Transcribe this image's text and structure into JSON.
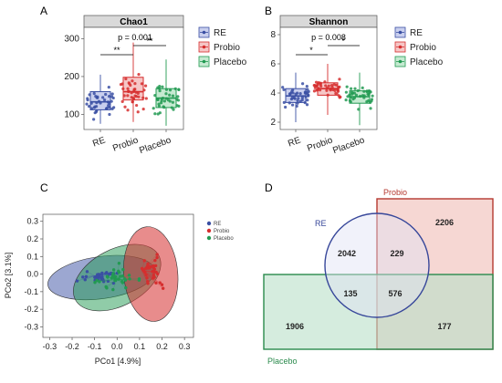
{
  "panels": {
    "a": "A",
    "b": "B",
    "c": "C",
    "d": "D"
  },
  "colors": {
    "re": "#3a4fa3",
    "probio": "#d62e2e",
    "placebo": "#229a52",
    "re_fill": "#c9cfee",
    "probio_fill": "#f6c6c6",
    "placebo_fill": "#c5ead1"
  },
  "chart_data": [
    {
      "type": "box",
      "panel": "A",
      "title": "Chao1",
      "categories": [
        "RE",
        "Probio",
        "Placebo"
      ],
      "yticks": [
        100,
        200,
        300
      ],
      "ylim": [
        60,
        330
      ],
      "stats": [
        {
          "name": "RE",
          "q1": 112,
          "median": 133,
          "q3": 160,
          "whisker_low": 75,
          "whisker_high": 205
        },
        {
          "name": "Probio",
          "q1": 138,
          "median": 160,
          "q3": 198,
          "whisker_low": 80,
          "whisker_high": 290
        },
        {
          "name": "Placebo",
          "q1": 118,
          "median": 143,
          "q3": 168,
          "whisker_low": 70,
          "whisker_high": 245
        }
      ],
      "annotations": {
        "p_value": "p = 0.001",
        "sig_left": "**",
        "sig_right": "**"
      },
      "legend": [
        "RE",
        "Probio",
        "Placebo"
      ]
    },
    {
      "type": "box",
      "panel": "B",
      "title": "Shannon",
      "categories": [
        "RE",
        "Probio",
        "Placebo"
      ],
      "yticks": [
        2,
        4,
        6,
        8
      ],
      "ylim": [
        1.5,
        8.5
      ],
      "stats": [
        {
          "name": "RE",
          "q1": 3.35,
          "median": 3.8,
          "q3": 4.3,
          "whisker_low": 2.0,
          "whisker_high": 5.4
        },
        {
          "name": "Probio",
          "q1": 3.85,
          "median": 4.3,
          "q3": 4.7,
          "whisker_low": 2.5,
          "whisker_high": 6.0
        },
        {
          "name": "Placebo",
          "q1": 3.3,
          "median": 3.75,
          "q3": 4.15,
          "whisker_low": 1.8,
          "whisker_high": 5.4
        }
      ],
      "annotations": {
        "p_value": "p = 0.008",
        "sig_left": "*",
        "sig_right": "*"
      },
      "legend": [
        "RE",
        "Probio",
        "Placebo"
      ]
    },
    {
      "type": "scatter",
      "panel": "C",
      "xlabel": "PCo1 [4.9%]",
      "ylabel": "PCo2 [3.1%]",
      "xticks": [
        -0.3,
        -0.2,
        -0.1,
        0.0,
        0.1,
        0.2,
        0.3
      ],
      "yticks": [
        -0.3,
        -0.2,
        -0.1,
        0.0,
        0.1,
        0.2,
        0.3
      ],
      "xlim": [
        -0.33,
        0.34
      ],
      "ylim": [
        -0.36,
        0.34
      ],
      "legend": [
        "RE",
        "Probio",
        "Placebo"
      ],
      "ellipses": [
        {
          "name": "RE",
          "cx": -0.07,
          "cy": -0.02,
          "rx": 0.24,
          "ry": 0.12,
          "angle": -8
        },
        {
          "name": "Probio",
          "cx": 0.15,
          "cy": 0.0,
          "rx": 0.12,
          "ry": 0.27,
          "angle": -5
        },
        {
          "name": "Placebo",
          "cx": 0.0,
          "cy": -0.02,
          "rx": 0.21,
          "ry": 0.16,
          "angle": -28
        }
      ],
      "centroids": [
        {
          "name": "RE",
          "x": -0.1,
          "y": -0.01
        },
        {
          "name": "Probio",
          "x": 0.11,
          "y": 0.02
        },
        {
          "name": "Placebo",
          "x": 0.0,
          "y": -0.03
        }
      ]
    },
    {
      "type": "venn",
      "panel": "D",
      "sets": [
        "RE",
        "Probio",
        "Placebo"
      ],
      "regions": {
        "re_only": 2042,
        "probio_only": 2206,
        "placebo_only": 1906,
        "re_probio": 229,
        "re_placebo": 135,
        "probio_placebo": 177,
        "all": 576
      }
    }
  ]
}
